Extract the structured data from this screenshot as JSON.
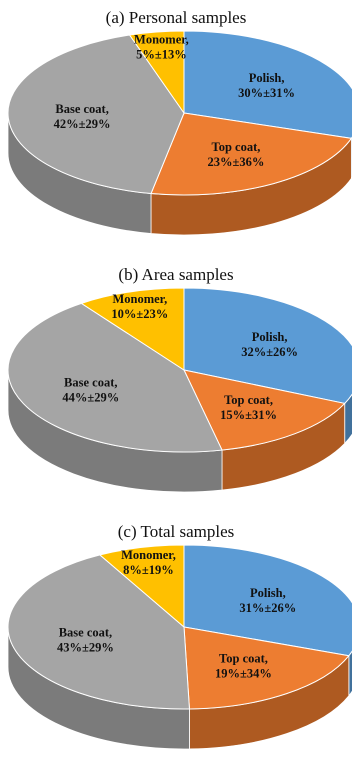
{
  "chart_data": [
    {
      "type": "pie",
      "title": "(a) Personal samples",
      "start_angle_deg": 0,
      "slices": [
        {
          "name": "Polish",
          "value": 30,
          "sd": 31,
          "line1": "Polish,",
          "line2": "30%±31%",
          "color": "#5B9BD5"
        },
        {
          "name": "Top coat",
          "value": 23,
          "sd": 36,
          "line1": "Top coat,",
          "line2": "23%±36%",
          "color": "#ED7D31"
        },
        {
          "name": "Base coat",
          "value": 42,
          "sd": 29,
          "line1": "Base coat,",
          "line2": "42%±29%",
          "color": "#A5A5A5"
        },
        {
          "name": "Monomer",
          "value": 5,
          "sd": 13,
          "line1": "Monomer,",
          "line2": "5%±13%",
          "color": "#FFC000"
        }
      ]
    },
    {
      "type": "pie",
      "title": "(b) Area samples",
      "start_angle_deg": 0,
      "slices": [
        {
          "name": "Polish",
          "value": 32,
          "sd": 26,
          "line1": "Polish,",
          "line2": "32%±26%",
          "color": "#5B9BD5"
        },
        {
          "name": "Top coat",
          "value": 15,
          "sd": 31,
          "line1": "Top coat,",
          "line2": "15%±31%",
          "color": "#ED7D31"
        },
        {
          "name": "Base coat",
          "value": 44,
          "sd": 29,
          "line1": "Base coat,",
          "line2": "44%±29%",
          "color": "#A5A5A5"
        },
        {
          "name": "Monomer",
          "value": 10,
          "sd": 23,
          "line1": "Monomer,",
          "line2": "10%±23%",
          "color": "#FFC000"
        }
      ]
    },
    {
      "type": "pie",
      "title": "(c) Total samples",
      "start_angle_deg": 0,
      "slices": [
        {
          "name": "Polish",
          "value": 31,
          "sd": 26,
          "line1": "Polish,",
          "line2": "31%±26%",
          "color": "#5B9BD5"
        },
        {
          "name": "Top coat",
          "value": 19,
          "sd": 34,
          "line1": "Top coat,",
          "line2": "19%±34%",
          "color": "#ED7D31"
        },
        {
          "name": "Base coat",
          "value": 43,
          "sd": 29,
          "line1": "Base coat,",
          "line2": "43%±29%",
          "color": "#A5A5A5"
        },
        {
          "name": "Monomer",
          "value": 8,
          "sd": 19,
          "line1": "Monomer,",
          "line2": "8%±19%",
          "color": "#FFC000"
        }
      ]
    }
  ]
}
